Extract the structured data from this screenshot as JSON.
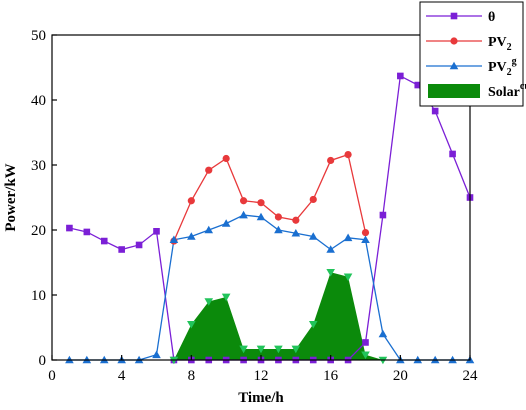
{
  "chart_data": {
    "type": "line",
    "xlabel": "Time/h",
    "ylabel": "Power/kW",
    "xlim": [
      0,
      24
    ],
    "ylim": [
      0,
      50
    ],
    "xticks": [
      0,
      4,
      8,
      12,
      16,
      20,
      24
    ],
    "yticks": [
      0,
      10,
      20,
      30,
      40,
      50
    ],
    "grid": false,
    "legend_position": "top-right",
    "series": [
      {
        "name": "θ",
        "kind": "line",
        "marker": "square",
        "color": "#7b1fd6",
        "x": [
          1,
          2,
          3,
          4,
          5,
          6,
          7,
          8,
          9,
          10,
          11,
          12,
          13,
          14,
          15,
          16,
          17,
          18,
          19,
          20,
          21,
          22,
          23,
          24
        ],
        "y": [
          20.3,
          19.7,
          18.3,
          17.0,
          17.7,
          19.8,
          0,
          0,
          0,
          0,
          0,
          0,
          0,
          0,
          0,
          0,
          0,
          2.7,
          22.3,
          43.7,
          42.3,
          38.3,
          31.7,
          25.0
        ]
      },
      {
        "name": "PV",
        "name_sub": "2",
        "kind": "line",
        "marker": "circle",
        "color": "#e8393b",
        "x": [
          7,
          8,
          9,
          10,
          11,
          12,
          13,
          14,
          15,
          16,
          17,
          18
        ],
        "y": [
          18.3,
          24.5,
          29.2,
          31.0,
          24.5,
          24.2,
          22.0,
          21.5,
          24.7,
          30.7,
          31.6,
          19.6
        ]
      },
      {
        "name": "PV",
        "name_sub": "2",
        "name_sup": "g",
        "kind": "line",
        "marker": "triangle",
        "color": "#1a6fd0",
        "x": [
          1,
          2,
          3,
          4,
          5,
          6,
          7,
          8,
          9,
          10,
          11,
          12,
          13,
          14,
          15,
          16,
          17,
          18,
          19,
          20,
          21,
          22,
          23,
          24
        ],
        "y": [
          0,
          0,
          0,
          0,
          0,
          0.8,
          18.5,
          19.0,
          20.0,
          21.0,
          22.3,
          22.0,
          20.0,
          19.5,
          19.0,
          17.0,
          18.8,
          18.5,
          4.0,
          0,
          0,
          0,
          0,
          0
        ]
      },
      {
        "name": "Solar",
        "name_sup": "cur",
        "kind": "area",
        "marker": "triangle-down",
        "color": "#0b8a0b",
        "marker_color": "#21c45a",
        "x": [
          7,
          8,
          9,
          10,
          11,
          12,
          13,
          14,
          15,
          16,
          17,
          18,
          19
        ],
        "y": [
          0,
          5.5,
          9.0,
          9.7,
          1.7,
          1.7,
          1.7,
          1.7,
          5.5,
          13.5,
          12.8,
          0.8,
          0
        ]
      }
    ]
  }
}
